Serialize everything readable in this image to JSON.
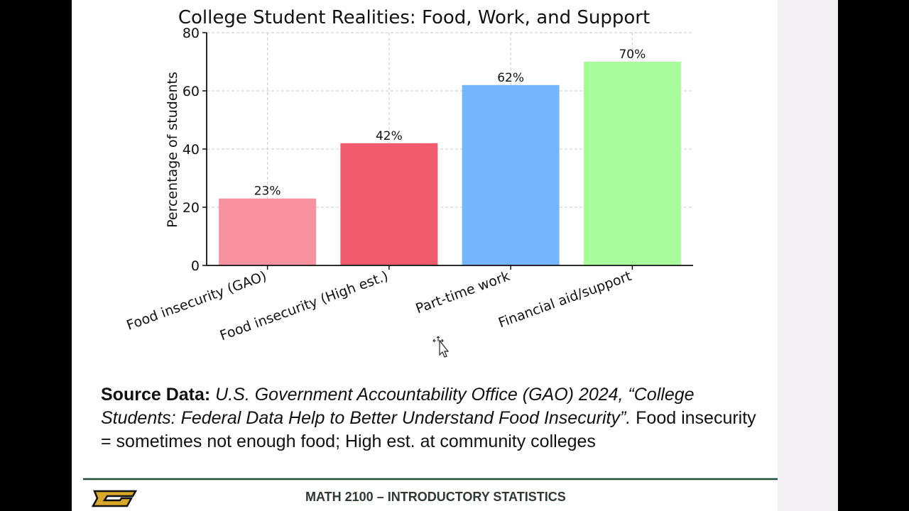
{
  "slide": {
    "source_label": "Source Data:",
    "source_citation": "U.S. Government Accountability Office (GAO) 2024, “College Students: Federal Data Help to Better Understand Food Insecurity”.",
    "source_note": " Food insecurity = sometimes not enough food; High est. at community colleges",
    "footer": "MATH 2100 – INTRODUCTORY STATISTICS",
    "logo_icon": "university-g-logo",
    "cursor_icon": "move-cursor-icon"
  },
  "chart_data": {
    "type": "bar",
    "title": "College Student Realities: Food, Work, and Support",
    "xlabel": "",
    "ylabel": "Percentage of students",
    "categories": [
      "Food insecurity (GAO)",
      "Food insecurity (High est.)",
      "Part-time work",
      "Financial aid/support"
    ],
    "values": [
      23,
      42,
      62,
      70
    ],
    "data_labels": [
      "23%",
      "42%",
      "62%",
      "70%"
    ],
    "colors": [
      "#f7919f",
      "#f25a6e",
      "#73b6fc",
      "#a6fd9a"
    ],
    "ylim": [
      0,
      80
    ],
    "yticks": [
      0,
      20,
      40,
      60,
      80
    ],
    "grid": true,
    "legend": "none"
  }
}
